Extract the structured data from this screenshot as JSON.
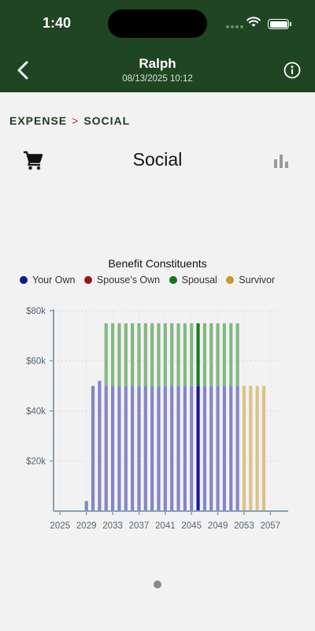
{
  "status_bar": {
    "time": "1:40"
  },
  "header": {
    "title": "Ralph",
    "subtitle": "08/13/2025 10:12"
  },
  "breadcrumb": {
    "parent": "EXPENSE",
    "separator": ">",
    "current": "SOCIAL"
  },
  "page": {
    "title": "Social",
    "left_icon": "cart-icon",
    "right_icon": "bar-chart-icon"
  },
  "chart_data": {
    "type": "bar",
    "stacked": true,
    "title": "Benefit Constituents",
    "legend_position": "top",
    "x_ticks": [
      "2025",
      "2029",
      "2033",
      "2037",
      "2041",
      "2045",
      "2049",
      "2053",
      "2057"
    ],
    "y_ticks": [
      "$20k",
      "$40k",
      "$60k",
      "$80k"
    ],
    "ylim": [
      0,
      80000
    ],
    "xlim": [
      2024,
      2059
    ],
    "highlight_year": 2046,
    "series": [
      {
        "name": "Your Own",
        "color": "#8585c8",
        "highlight_color": "#1a1a9c",
        "legend_color": "#0a1a8c",
        "points": [
          [
            2029,
            4000
          ],
          [
            2030,
            50000
          ],
          [
            2031,
            52000
          ],
          [
            2032,
            50000
          ],
          [
            2033,
            50000
          ],
          [
            2034,
            50000
          ],
          [
            2035,
            50000
          ],
          [
            2036,
            50000
          ],
          [
            2037,
            50000
          ],
          [
            2038,
            50000
          ],
          [
            2039,
            50000
          ],
          [
            2040,
            50000
          ],
          [
            2041,
            50000
          ],
          [
            2042,
            50000
          ],
          [
            2043,
            50000
          ],
          [
            2044,
            50000
          ],
          [
            2045,
            50000
          ],
          [
            2046,
            50000
          ],
          [
            2047,
            50000
          ],
          [
            2048,
            50000
          ],
          [
            2049,
            50000
          ],
          [
            2050,
            50000
          ],
          [
            2051,
            50000
          ],
          [
            2052,
            50000
          ]
        ]
      },
      {
        "name": "Spouse's Own",
        "color": "#c07070",
        "legend_color": "#9c1414",
        "points": []
      },
      {
        "name": "Spousal",
        "color": "#82b882",
        "highlight_color": "#1f7a1f",
        "legend_color": "#137a13",
        "points": [
          [
            2032,
            25000
          ],
          [
            2033,
            25000
          ],
          [
            2034,
            25000
          ],
          [
            2035,
            25000
          ],
          [
            2036,
            25000
          ],
          [
            2037,
            25000
          ],
          [
            2038,
            25000
          ],
          [
            2039,
            25000
          ],
          [
            2040,
            25000
          ],
          [
            2041,
            25000
          ],
          [
            2042,
            25000
          ],
          [
            2043,
            25000
          ],
          [
            2044,
            25000
          ],
          [
            2045,
            25000
          ],
          [
            2046,
            25000
          ],
          [
            2047,
            25000
          ],
          [
            2048,
            25000
          ],
          [
            2049,
            25000
          ],
          [
            2050,
            25000
          ],
          [
            2051,
            25000
          ],
          [
            2052,
            25000
          ]
        ]
      },
      {
        "name": "Survivor",
        "color": "#dcc286",
        "legend_color": "#c49a26",
        "points": [
          [
            2053,
            50000
          ],
          [
            2054,
            50000
          ],
          [
            2055,
            50000
          ],
          [
            2056,
            50000
          ]
        ]
      }
    ]
  }
}
